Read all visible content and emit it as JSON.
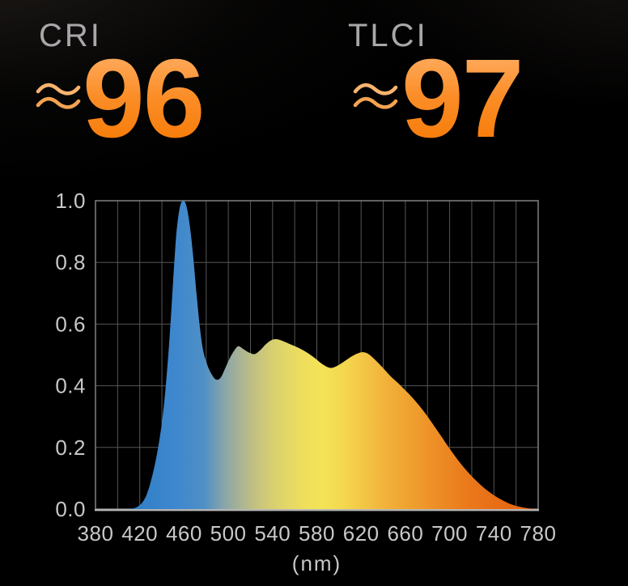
{
  "background": "#000000",
  "stats": [
    {
      "label": "CRI",
      "approx_symbol": "≈",
      "value": "96"
    },
    {
      "label": "TLCI",
      "approx_symbol": "≈",
      "value": "97"
    }
  ],
  "accent": {
    "value_gradient_top": "#ffae63",
    "value_gradient_bottom": "#f67a06",
    "approx_wave_color": "#f7ad62",
    "label_color": "#a8a8ab"
  },
  "chart_data": {
    "type": "area",
    "title": "",
    "xlabel": "(nm)",
    "ylabel": "",
    "x_range": [
      380,
      780
    ],
    "y_range": [
      0,
      1
    ],
    "x_grid_step": 20,
    "y_grid_step": 0.2,
    "grid": true,
    "x_tick_labels": [
      "380",
      "420",
      "460",
      "500",
      "540",
      "580",
      "620",
      "660",
      "700",
      "740",
      "780"
    ],
    "x_tick_values": [
      380,
      420,
      460,
      500,
      540,
      580,
      620,
      660,
      700,
      740,
      780
    ],
    "y_tick_labels": [
      "0.0",
      "0.2",
      "0.4",
      "0.6",
      "0.8",
      "1.0"
    ],
    "y_tick_values": [
      0,
      0.2,
      0.4,
      0.6,
      0.8,
      1.0
    ],
    "axis_color": "#8a8a8a",
    "grid_color": "#565656",
    "baseline_color": "#b5b5b5",
    "tick_label_color": "#c8c8c8",
    "series": [
      {
        "name": "spectral-power-distribution",
        "points": [
          [
            408,
            0
          ],
          [
            414,
            0.002
          ],
          [
            418,
            0.008
          ],
          [
            422,
            0.02
          ],
          [
            426,
            0.045
          ],
          [
            430,
            0.09
          ],
          [
            434,
            0.15
          ],
          [
            438,
            0.23
          ],
          [
            441,
            0.31
          ],
          [
            444,
            0.42
          ],
          [
            447,
            0.56
          ],
          [
            450,
            0.73
          ],
          [
            453,
            0.89
          ],
          [
            456,
            0.975
          ],
          [
            459,
            1.0
          ],
          [
            462,
            0.985
          ],
          [
            465,
            0.925
          ],
          [
            468,
            0.83
          ],
          [
            471,
            0.71
          ],
          [
            474,
            0.6
          ],
          [
            477,
            0.52
          ],
          [
            481,
            0.468
          ],
          [
            485,
            0.437
          ],
          [
            489,
            0.42
          ],
          [
            493,
            0.426
          ],
          [
            497,
            0.455
          ],
          [
            501,
            0.487
          ],
          [
            505,
            0.512
          ],
          [
            509,
            0.528
          ],
          [
            514,
            0.518
          ],
          [
            519,
            0.507
          ],
          [
            524,
            0.503
          ],
          [
            529,
            0.516
          ],
          [
            534,
            0.535
          ],
          [
            539,
            0.548
          ],
          [
            544,
            0.551
          ],
          [
            550,
            0.544
          ],
          [
            557,
            0.533
          ],
          [
            564,
            0.522
          ],
          [
            571,
            0.508
          ],
          [
            578,
            0.49
          ],
          [
            585,
            0.47
          ],
          [
            592,
            0.458
          ],
          [
            598,
            0.464
          ],
          [
            604,
            0.477
          ],
          [
            611,
            0.494
          ],
          [
            617,
            0.505
          ],
          [
            622,
            0.509
          ],
          [
            627,
            0.502
          ],
          [
            633,
            0.483
          ],
          [
            639,
            0.461
          ],
          [
            646,
            0.433
          ],
          [
            653,
            0.41
          ],
          [
            660,
            0.385
          ],
          [
            668,
            0.355
          ],
          [
            676,
            0.32
          ],
          [
            684,
            0.28
          ],
          [
            692,
            0.238
          ],
          [
            700,
            0.196
          ],
          [
            708,
            0.157
          ],
          [
            716,
            0.122
          ],
          [
            724,
            0.092
          ],
          [
            732,
            0.066
          ],
          [
            740,
            0.045
          ],
          [
            748,
            0.028
          ],
          [
            756,
            0.015
          ],
          [
            764,
            0.007
          ],
          [
            772,
            0.002
          ],
          [
            780,
            0
          ]
        ]
      }
    ],
    "spectrum_gradient": [
      {
        "nm": 408,
        "color": "#2e7ec7"
      },
      {
        "nm": 455,
        "color": "#3f88ce"
      },
      {
        "nm": 478,
        "color": "#4f8fc5"
      },
      {
        "nm": 495,
        "color": "#86a4ab"
      },
      {
        "nm": 510,
        "color": "#a8b295"
      },
      {
        "nm": 525,
        "color": "#c4c27f"
      },
      {
        "nm": 545,
        "color": "#ddd36c"
      },
      {
        "nm": 565,
        "color": "#ecdd5e"
      },
      {
        "nm": 585,
        "color": "#f4e356"
      },
      {
        "nm": 605,
        "color": "#f4d74e"
      },
      {
        "nm": 625,
        "color": "#f3c344"
      },
      {
        "nm": 645,
        "color": "#f1af3a"
      },
      {
        "nm": 665,
        "color": "#efa02f"
      },
      {
        "nm": 690,
        "color": "#ed8c25"
      },
      {
        "nm": 715,
        "color": "#ea7a1c"
      },
      {
        "nm": 745,
        "color": "#e76c15"
      },
      {
        "nm": 780,
        "color": "#e56511"
      }
    ],
    "legend": false
  }
}
